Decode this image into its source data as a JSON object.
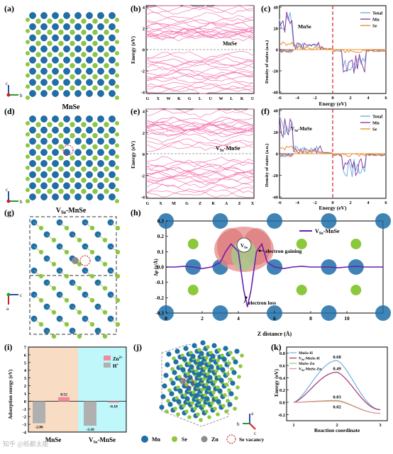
{
  "panel_labels": {
    "a": "(a)",
    "b": "(b)",
    "c": "(c)",
    "d": "(d)",
    "e": "(e)",
    "f": "(f)",
    "g": "(g)",
    "h": "(h)",
    "i": "(i)",
    "j": "(j)",
    "k": "(k)"
  },
  "structure_captions": {
    "a": "MnSe",
    "d": "V",
    "d_sub": "Se",
    "d_tail": "-MnSe"
  },
  "axis_letters": {
    "c": "c",
    "b": "b",
    "a": "a"
  },
  "colors": {
    "mn": "#1f6fa8",
    "se": "#8cc83c",
    "zn": "#8c8c8c",
    "pink": "#f47ab4",
    "purple": "#6a1fb0",
    "total": "#6fb0e0",
    "mn_dos": "#8a3fa0",
    "se_dos": "#e89030",
    "bar_zn": "#f08aa0",
    "bar_h": "#b0b0b0",
    "bg_left": "#f9dcc4",
    "bg_right": "#bff7fb",
    "vac": "#d03030",
    "fermi": "#d02020"
  },
  "chart_data": [
    {
      "id": "b",
      "type": "line",
      "title": "",
      "annotation": "MnSe",
      "ylabel": "Energy (eV)",
      "ylim": [
        -4,
        4
      ],
      "yticks": [
        "4",
        "2",
        "0",
        "-2",
        "-4"
      ],
      "xticks": [
        "G",
        "X",
        "W",
        "K",
        "G",
        "L",
        "U",
        "W",
        "L",
        "K",
        "U"
      ]
    },
    {
      "id": "c",
      "type": "line",
      "annotation": "MnSe",
      "xlabel": "Energy (eV)",
      "ylabel": "Density of states (a.u.)",
      "xlim": [
        -6,
        6
      ],
      "ylim": [
        -40,
        40
      ],
      "xticks": [
        "-6",
        "-4",
        "-2",
        "0",
        "2",
        "4",
        "6"
      ],
      "yticks": [
        "40",
        "20",
        "0",
        "-20",
        "-40"
      ],
      "legend": [
        "Total",
        "Mn",
        "Se"
      ]
    },
    {
      "id": "e",
      "type": "line",
      "annotation_main": "V",
      "annotation_sub": "Se",
      "annotation_tail": "-MnSe",
      "ylabel": "Energy (eV)",
      "ylim": [
        -4,
        4
      ],
      "yticks": [
        "4",
        "2",
        "0",
        "-2",
        "-4"
      ],
      "xticks": [
        "G",
        "X",
        "M",
        "G",
        "Z",
        "R",
        "A",
        "Z",
        "X"
      ]
    },
    {
      "id": "f",
      "type": "line",
      "annotation_main": "V",
      "annotation_sub": "Se",
      "annotation_tail": "-MnSe",
      "xlabel": "Energy (eV)",
      "ylabel": "Density of states (a.u.)",
      "xlim": [
        -6,
        6
      ],
      "ylim": [
        -40,
        40
      ],
      "xticks": [
        "-6",
        "-4",
        "-2",
        "0",
        "2",
        "4",
        "6"
      ],
      "yticks": [
        "40",
        "20",
        "0",
        "-20",
        "-40"
      ],
      "legend": [
        "Total",
        "Mn",
        "Se"
      ]
    },
    {
      "id": "h",
      "type": "line",
      "xlabel": "Z distance (Å)",
      "ylabel": "Δρ (e/Å)",
      "xlim": [
        0,
        12
      ],
      "ylim": [
        -0.3,
        0.3
      ],
      "xticks": [
        "0",
        "2",
        "4",
        "6",
        "8",
        "10"
      ],
      "yticks": [
        "0.3",
        "0.2",
        "0.1",
        "0.0",
        "-0.1",
        "-0.2",
        "-0.3"
      ],
      "legend_main": "V",
      "legend_sub": "Se",
      "legend_tail": "-MnSe",
      "vacancy_label_main": "V",
      "vacancy_label_sub": "Se",
      "annotations": [
        "electron gaining",
        "electron loss"
      ],
      "x": [
        0,
        0.5,
        1,
        1.5,
        2,
        2.5,
        3,
        3.3,
        3.6,
        4,
        4.3,
        4.5,
        4.7,
        5,
        5.3,
        5.6,
        6,
        6.5,
        7,
        7.5,
        8,
        8.5,
        9,
        9.5,
        10,
        10.5,
        11,
        11.5,
        12
      ],
      "y": [
        0,
        0,
        0.005,
        0,
        -0.01,
        0,
        0.03,
        0.1,
        0.15,
        0.1,
        -0.15,
        -0.26,
        -0.15,
        0.1,
        0.15,
        0.03,
        0,
        -0.01,
        0,
        0.005,
        0,
        0,
        0,
        -0.005,
        0,
        0.005,
        0,
        0,
        0
      ]
    },
    {
      "id": "i",
      "type": "bar",
      "ylabel": "Adsorption energy (eV)",
      "ylim": [
        -4,
        7
      ],
      "yticks": [
        "7",
        "6",
        "5",
        "4",
        "3",
        "2",
        "1",
        "0",
        "-1",
        "-2",
        "-3",
        "-4"
      ],
      "categories": [
        "MnSe",
        "V-MnSe"
      ],
      "category_main": [
        "MnSe",
        "V"
      ],
      "category_sub": [
        "",
        "Se"
      ],
      "category_tail": [
        "",
        "-MnSe"
      ],
      "legend_main": [
        "Zn",
        "H"
      ],
      "legend_sup": [
        "2+",
        "+"
      ],
      "series": [
        {
          "name": "Zn2+",
          "values": [
            0.52,
            -0.18
          ]
        },
        {
          "name": "H+",
          "values": [
            -2.86,
            -3.18
          ]
        }
      ],
      "value_labels": [
        [
          "0.52",
          "-0.18"
        ],
        [
          "-2.86",
          "-3.18"
        ]
      ]
    },
    {
      "id": "k",
      "type": "line",
      "ylabel": "Energy (eV)",
      "xlabel": "Reaction coordinate",
      "ylim": [
        -0.3,
        0.9
      ],
      "xticks": [
        "1",
        "2",
        "3"
      ],
      "yticks": [
        "0.8",
        "0.6",
        "0.4",
        "0.2",
        "0.0",
        "-0.2"
      ],
      "legend": [
        {
          "main": "MnSe-H",
          "sub": "",
          "tail": ""
        },
        {
          "main": "V",
          "sub": "Se",
          "tail": "-MnSe-H"
        },
        {
          "main": "MnSe-Zn",
          "sub": "",
          "tail": ""
        },
        {
          "main": "V",
          "sub": "Se",
          "tail": "-MnSe-Zn"
        }
      ],
      "barrier_labels": [
        "0.68",
        "0.49",
        "0.03",
        "0.02"
      ],
      "series": [
        {
          "peak": 0.68
        },
        {
          "peak": 0.49
        },
        {
          "peak": 0.03
        },
        {
          "peak": 0.02
        }
      ]
    }
  ],
  "legend_j": {
    "mn": "Mn",
    "se": "Se",
    "zn": "Zn",
    "vac": "Se vacancy"
  },
  "watermark": "知乎 @纸都太能"
}
